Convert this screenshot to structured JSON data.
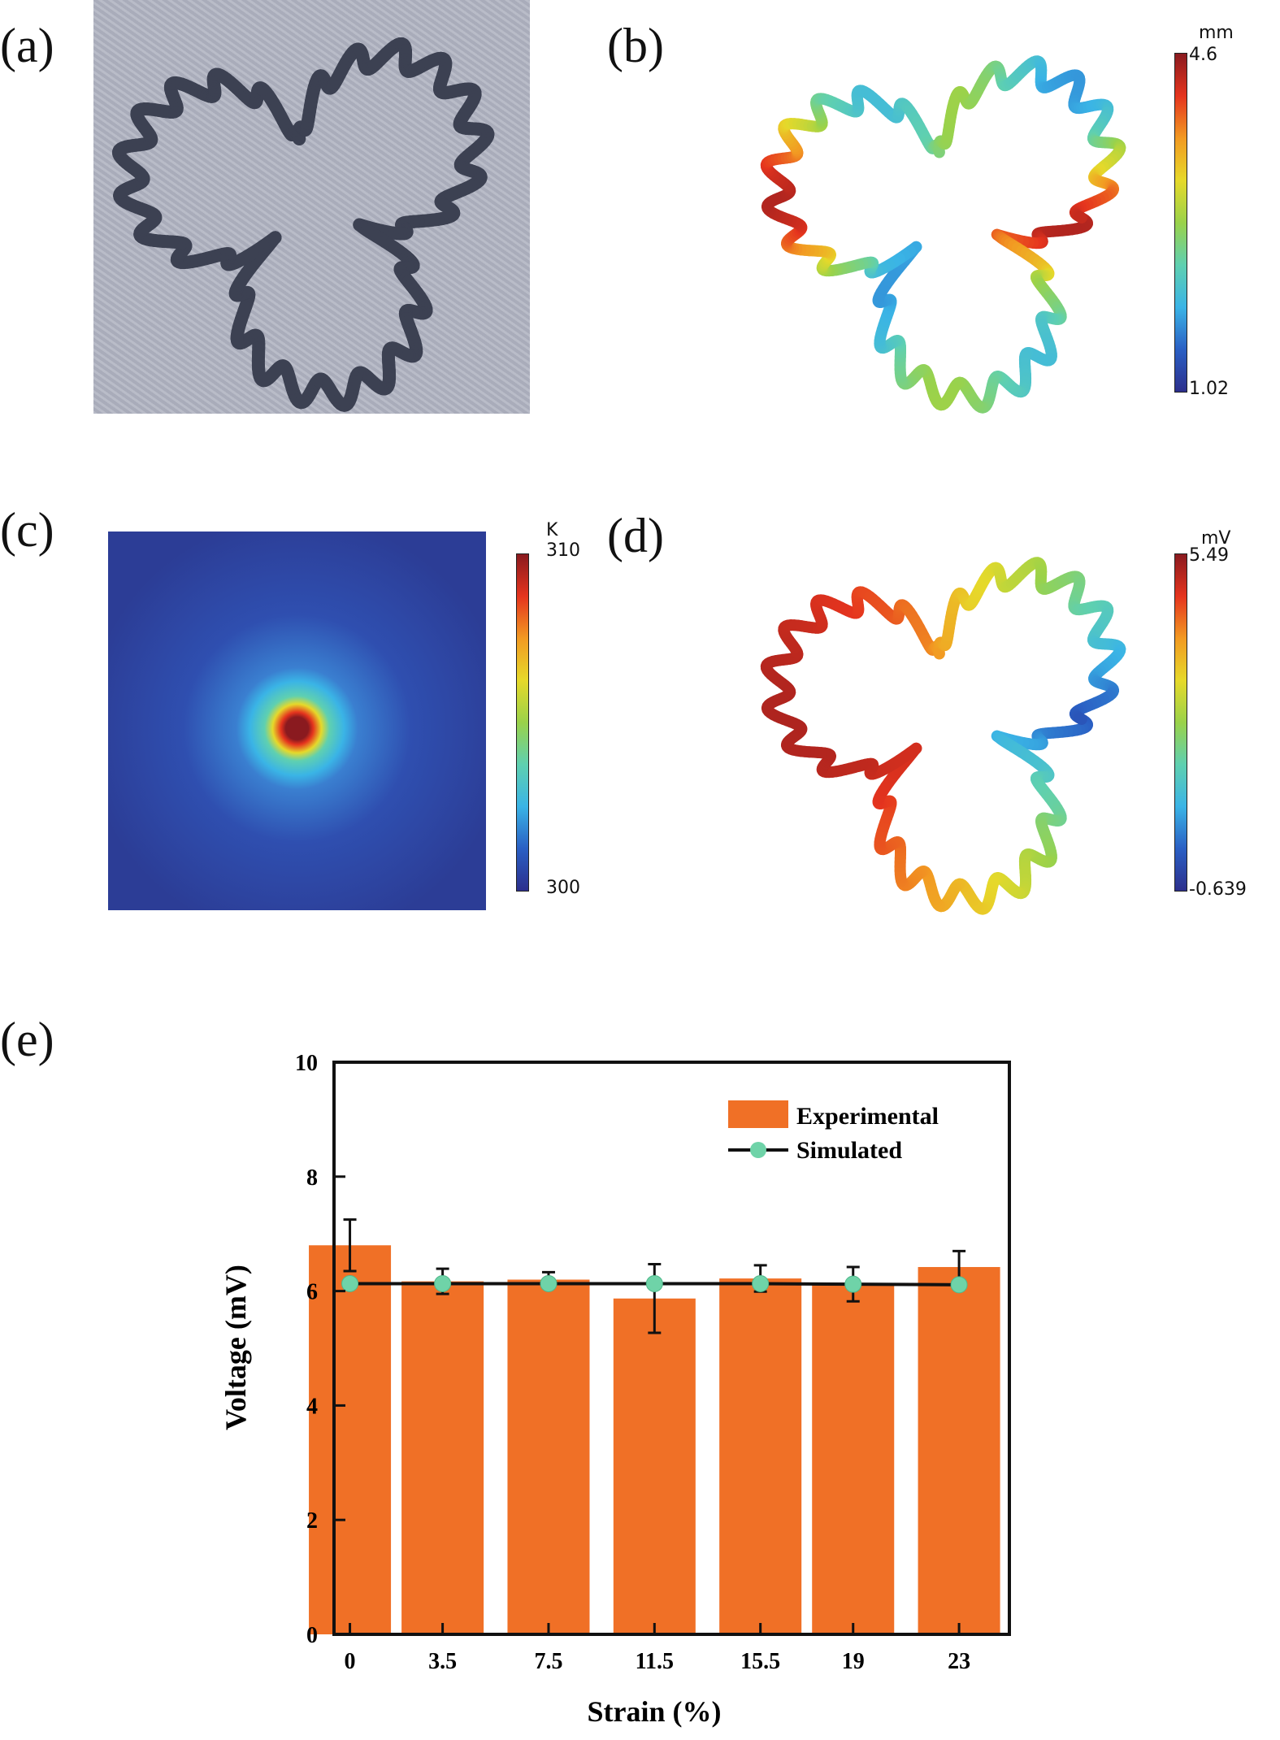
{
  "panels": {
    "a": {
      "label": "(a)"
    },
    "b": {
      "label": "(b)",
      "colorbar": {
        "unit": "mm",
        "max": "4.6",
        "min": "1.02"
      }
    },
    "c": {
      "label": "(c)",
      "colorbar": {
        "unit": "K",
        "max": "310",
        "min": "300"
      }
    },
    "d": {
      "label": "(d)",
      "colorbar": {
        "unit": "mV",
        "max": "5.49",
        "min": "-0.639"
      }
    },
    "e": {
      "label": "(e)"
    }
  },
  "colormap": [
    "#2c2f8c",
    "#2a5fc4",
    "#3ab4e6",
    "#5fd0b0",
    "#9ad24a",
    "#e6d92a",
    "#f29a22",
    "#e5341e",
    "#8a1a1f"
  ],
  "chart_data": {
    "type": "bar",
    "xlabel": "Strain (%)",
    "ylabel": "Voltage (mV)",
    "ylim": [
      0,
      10
    ],
    "xlim": [
      -0.6,
      24.9
    ],
    "yticks": [
      "0",
      "2",
      "4",
      "6",
      "8",
      "10"
    ],
    "categories": [
      "0",
      "3.5",
      "7.5",
      "11.5",
      "15.5",
      "19",
      "23"
    ],
    "x": [
      0,
      3.5,
      7.5,
      11.5,
      15.5,
      19,
      23
    ],
    "series": [
      {
        "name": "Experimental",
        "type": "bar",
        "color": "#f07026",
        "values": [
          6.8,
          6.17,
          6.2,
          5.87,
          6.22,
          6.12,
          6.42
        ],
        "error": [
          0.45,
          0.22,
          0.13,
          0.6,
          0.23,
          0.3,
          0.28
        ]
      },
      {
        "name": "Simulated",
        "type": "line",
        "color": "#6fd3a8",
        "line_color": "#111111",
        "values": [
          6.13,
          6.13,
          6.13,
          6.13,
          6.13,
          6.12,
          6.11
        ]
      }
    ],
    "legend": "top-right",
    "grid": false
  }
}
